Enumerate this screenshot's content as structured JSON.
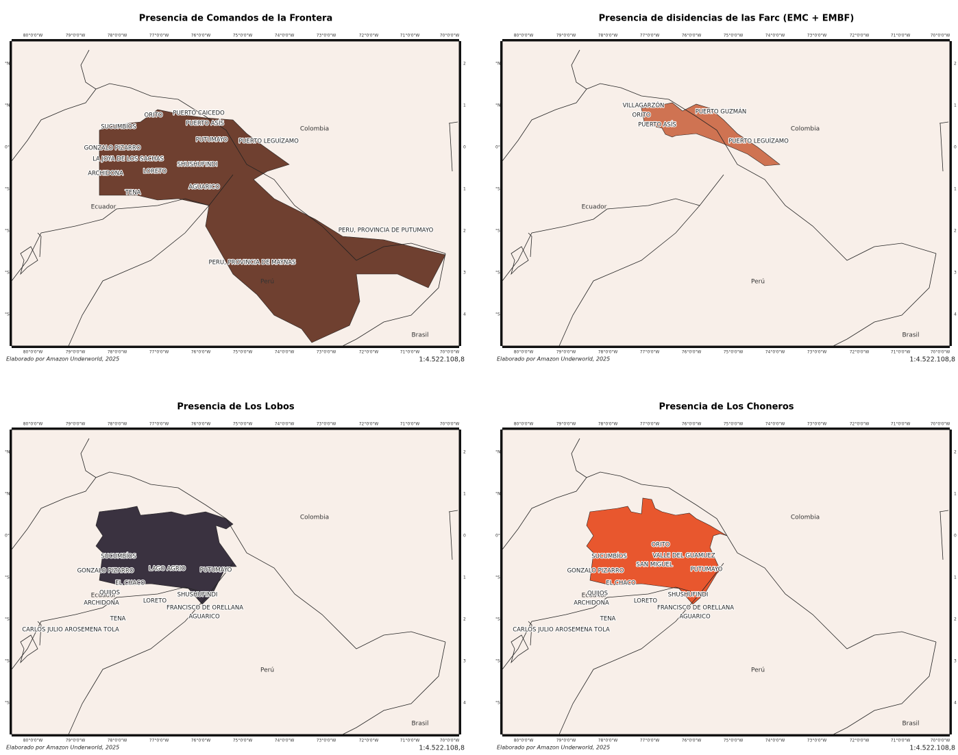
{
  "frame": {
    "lon_ticks": [
      "80°0'0\"W",
      "79°0'0\"W",
      "78°0'0\"W",
      "77°0'0\"W",
      "76°0'0\"W",
      "75°0'0\"W",
      "74°0'0\"W",
      "73°0'0\"W",
      "72°0'0\"W",
      "71°0'0\"W",
      "70°0'0\"W"
    ],
    "lat_ticks_left": [
      "°N",
      "°N",
      "0°",
      "°S",
      "°S",
      "°S",
      "°S"
    ],
    "lat_ticks_right": [
      "2",
      "1",
      "0",
      "1",
      "2",
      "3",
      "4"
    ],
    "countries": [
      "Colombia",
      "Ecuador",
      "Perú",
      "Brasil"
    ],
    "credit": "Elaborado por Amazon Underworld, 2025",
    "scale": "1:4.522.108,8"
  },
  "panels": [
    {
      "title": "Presencia de Comandos de la Frontera",
      "color": "#6f4030",
      "regions": [
        "ORITO",
        "PUERTO CAICEDO",
        "SUCUMBÍOS",
        "PUERTO ASÍS",
        "GONZALO PIZARRO",
        "PUTUMAYO",
        "PUERTO LEGUÍZAMO",
        "LA JOYA DE LOS SACHAS",
        "SHUSHUFINDI",
        "ARCHIDONA",
        "LORETO",
        "AGUARICO",
        "TENA",
        "PERU, PROVINCIA DE PUTUMAYO",
        "PERU, PROVINCIA DE MAYNAS"
      ]
    },
    {
      "title": "Presencia de disidencias de las Farc (EMC + EMBF)",
      "color": "#cf7352",
      "regions": [
        "VILLAGARZÓN",
        "ORITO",
        "PUERTO GUZMÁN",
        "PUERTO ASÍS",
        "PUERTO LEGUÍZAMO"
      ]
    },
    {
      "title": "Presencia de Los Lobos",
      "color": "#3a3240",
      "regions": [
        "SUCUMBÍOS",
        "GONZALO PIZARRO",
        "LAGO AGRIO",
        "PUTUMAYO",
        "EL CHACO",
        "QUIJOS",
        "SHUSHUFINDI",
        "ARCHIDONA",
        "LORETO",
        "FRANCISCO DE ORELLANA",
        "AGUARICO",
        "TENA",
        "CARLOS JULIO AROSEMENA TOLA"
      ]
    },
    {
      "title": "Presencia de Los Choneros",
      "color": "#e8572e",
      "regions": [
        "ORITO",
        "VALLE DEL GUAMUEZ",
        "SUCUMBÍOS",
        "SAN MIGUEL",
        "GONZALO PIZARRO",
        "PUTUMAYO",
        "EL CHACO",
        "QUIJOS",
        "SHUSHUFINDI",
        "ARCHIDONA",
        "LORETO",
        "FRANCISCO DE ORELLANA",
        "AGUARICO",
        "TENA",
        "CARLOS JULIO AROSEMENA TOLA"
      ]
    }
  ]
}
